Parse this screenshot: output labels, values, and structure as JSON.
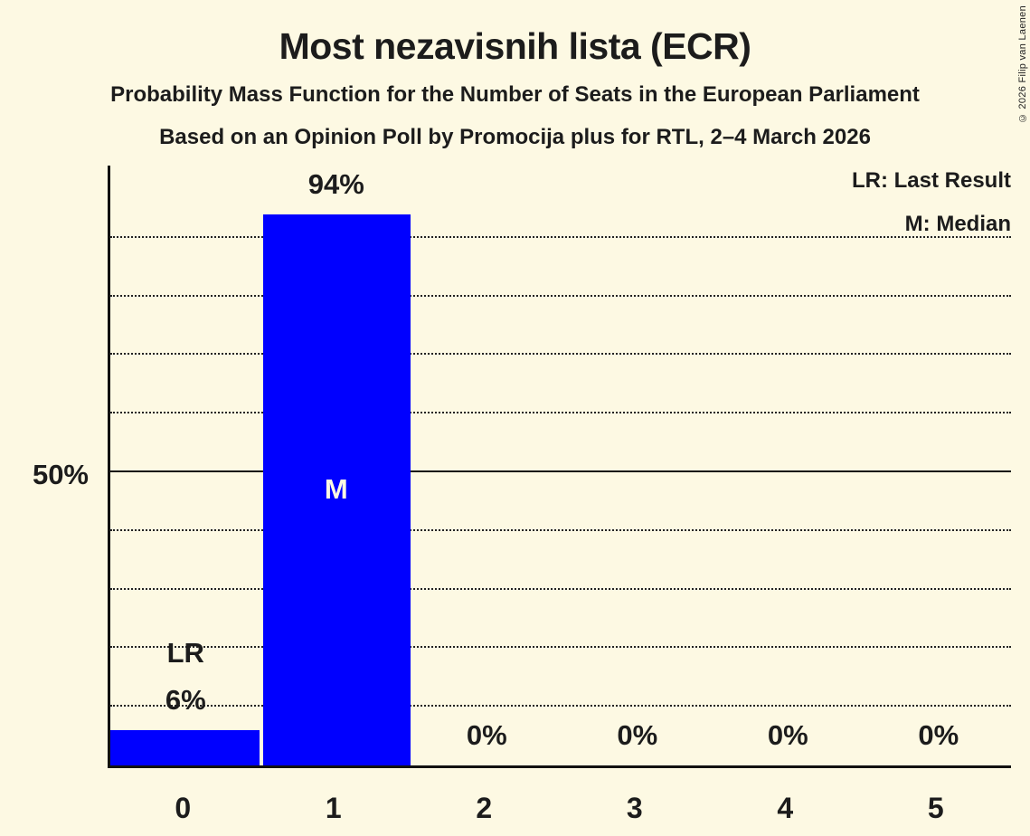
{
  "title": "Most nezavisnih lista (ECR)",
  "subtitle": "Probability Mass Function for the Number of Seats in the European Parliament",
  "source_line": "Based on an Opinion Poll by Promocija plus for RTL, 2–4 March 2026",
  "copyright": "© 2026 Filip van Laenen",
  "legend": {
    "last_result": "LR: Last Result",
    "median": "M: Median"
  },
  "y_axis": {
    "tick_label": "50%"
  },
  "colors": {
    "background": "#fdf9e3",
    "bar": "#0000ff",
    "text": "#1c1c1c",
    "median_text": "#fdf9e3"
  },
  "chart_data": {
    "type": "bar",
    "title": "Most nezavisnih lista (ECR)",
    "categories": [
      "0",
      "1",
      "2",
      "3",
      "4",
      "5"
    ],
    "values": [
      6,
      94,
      0,
      0,
      0,
      0
    ],
    "bar_labels": [
      "6%",
      "94%",
      "0%",
      "0%",
      "0%",
      "0%"
    ],
    "ylim": [
      0,
      100
    ],
    "y_solid_line_percent": 50,
    "y_dotted_gridlines_percent": [
      10,
      20,
      30,
      40,
      60,
      70,
      80,
      90
    ],
    "grid": "horizontal-dotted",
    "legend_entries": [
      "LR: Last Result",
      "M: Median"
    ],
    "legend_position": "top-right",
    "annotations": {
      "last_result_category": "0",
      "last_result_text": "LR",
      "median_category": "1",
      "median_text": "M"
    }
  }
}
